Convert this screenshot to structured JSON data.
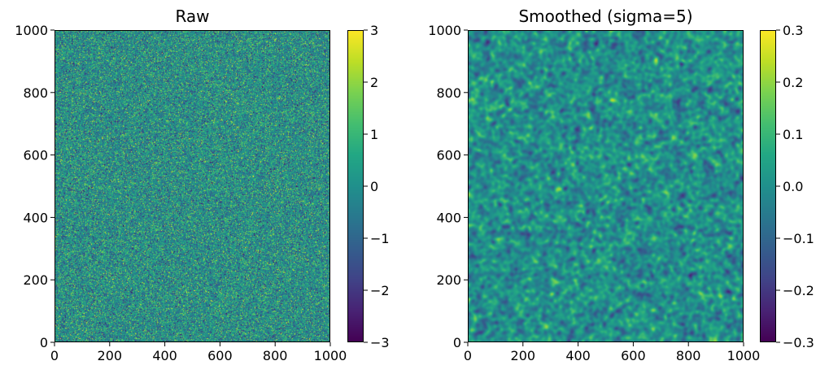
{
  "chart_data": [
    {
      "type": "heatmap",
      "title": "Raw",
      "xlim": [
        0,
        1000
      ],
      "ylim": [
        0,
        1000
      ],
      "x_ticks": [
        0,
        200,
        400,
        600,
        800,
        1000
      ],
      "y_ticks": [
        0,
        200,
        400,
        600,
        800,
        1000
      ],
      "x_tick_labels": [
        "0",
        "200",
        "400",
        "600",
        "800",
        "1000"
      ],
      "y_tick_labels": [
        "0",
        "200",
        "400",
        "600",
        "800",
        "1000"
      ],
      "colormap": "viridis",
      "colorbar": {
        "range": [
          -3,
          3
        ],
        "ticks": [
          3,
          2,
          1,
          0,
          -1,
          -2,
          -3
        ],
        "tick_labels": [
          "3",
          "2",
          "1",
          "0",
          "−1",
          "−2",
          "−3"
        ]
      },
      "field": {
        "kind": "white-noise",
        "mean": 0,
        "std": 1
      }
    },
    {
      "type": "heatmap",
      "title": "Smoothed (sigma=5)",
      "xlim": [
        0,
        1000
      ],
      "ylim": [
        0,
        1000
      ],
      "x_ticks": [
        0,
        200,
        400,
        600,
        800,
        1000
      ],
      "y_ticks": [
        0,
        200,
        400,
        600,
        800,
        1000
      ],
      "x_tick_labels": [
        "0",
        "200",
        "400",
        "600",
        "800",
        "1000"
      ],
      "y_tick_labels": [
        "0",
        "200",
        "400",
        "600",
        "800",
        "1000"
      ],
      "colormap": "viridis",
      "colorbar": {
        "range": [
          -0.3,
          0.3
        ],
        "ticks": [
          0.3,
          0.2,
          0.1,
          0.0,
          -0.1,
          -0.2,
          -0.3
        ],
        "tick_labels": [
          "0.3",
          "0.2",
          "0.1",
          "0.0",
          "−0.1",
          "−0.2",
          "−0.3"
        ]
      },
      "field": {
        "kind": "gaussian-smoothed-noise",
        "sigma": 5,
        "mean": 0,
        "std": 0.055
      }
    }
  ]
}
